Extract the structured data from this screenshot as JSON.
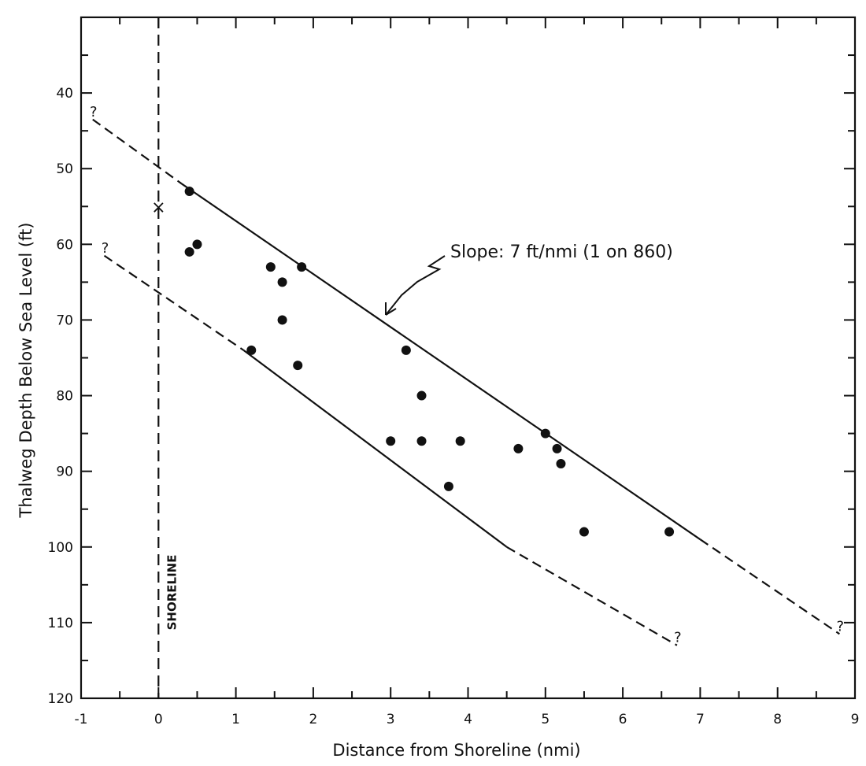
{
  "chart_data": {
    "type": "scatter",
    "title": "",
    "xlabel": "Distance from Shoreline (nmi)",
    "ylabel": "Thalweg Depth Below Sea Level (ft)",
    "xlim": [
      -1,
      9
    ],
    "ylim": [
      120,
      30
    ],
    "y_inverted": true,
    "grid": false,
    "x_ticks": [
      -1,
      0,
      1,
      2,
      3,
      4,
      5,
      6,
      7,
      8,
      9
    ],
    "x_tick_labels": [
      "-1",
      "0",
      "1",
      "2",
      "3",
      "4",
      "5",
      "6",
      "7",
      "8",
      "9"
    ],
    "y_ticks": [
      40,
      50,
      60,
      70,
      80,
      90,
      100,
      110,
      120
    ],
    "y_tick_labels": [
      "40",
      "50",
      "60",
      "70",
      "80",
      "90",
      "100",
      "110",
      "120"
    ],
    "points": [
      {
        "x": 0.4,
        "y": 53
      },
      {
        "x": 0.4,
        "y": 61
      },
      {
        "x": 0.5,
        "y": 60
      },
      {
        "x": 1.2,
        "y": 74
      },
      {
        "x": 1.45,
        "y": 63
      },
      {
        "x": 1.6,
        "y": 65
      },
      {
        "x": 1.6,
        "y": 70
      },
      {
        "x": 1.8,
        "y": 76
      },
      {
        "x": 1.85,
        "y": 63
      },
      {
        "x": 3.0,
        "y": 86
      },
      {
        "x": 3.2,
        "y": 74
      },
      {
        "x": 3.4,
        "y": 80
      },
      {
        "x": 3.4,
        "y": 86
      },
      {
        "x": 3.9,
        "y": 86
      },
      {
        "x": 3.75,
        "y": 92
      },
      {
        "x": 4.65,
        "y": 87
      },
      {
        "x": 5.0,
        "y": 85
      },
      {
        "x": 5.15,
        "y": 87
      },
      {
        "x": 5.2,
        "y": 89
      },
      {
        "x": 5.5,
        "y": 98
      },
      {
        "x": 6.6,
        "y": 98
      }
    ],
    "lines": [
      {
        "style": "solid",
        "x": [
          0.3,
          7.0
        ],
        "y": [
          52,
          99
        ]
      },
      {
        "style": "dashed",
        "x": [
          -0.85,
          0.3
        ],
        "y": [
          43.5,
          52
        ]
      },
      {
        "style": "dashed",
        "x": [
          7.0,
          8.8
        ],
        "y": [
          99,
          111.5
        ]
      },
      {
        "style": "solid",
        "x": [
          1.1,
          4.5
        ],
        "y": [
          74,
          100
        ]
      },
      {
        "style": "dashed",
        "x": [
          -0.7,
          1.1
        ],
        "y": [
          61.5,
          74
        ]
      },
      {
        "style": "dashed",
        "x": [
          4.5,
          6.7
        ],
        "y": [
          100,
          113
        ]
      }
    ],
    "shoreline_x": 0,
    "shoreline_marker": {
      "x": 0,
      "y": 55,
      "symbol": "×"
    },
    "shoreline_label": "SHORELINE",
    "annotation": {
      "text": "Slope: 7 ft/nmi (1 on 860)"
    },
    "question_marks": [
      {
        "x": -0.85,
        "y": 43.5,
        "text": "?"
      },
      {
        "x": -0.7,
        "y": 61.5,
        "text": "?"
      },
      {
        "x": 8.8,
        "y": 111.5,
        "text": "?"
      },
      {
        "x": 6.7,
        "y": 113,
        "text": "?"
      }
    ]
  }
}
